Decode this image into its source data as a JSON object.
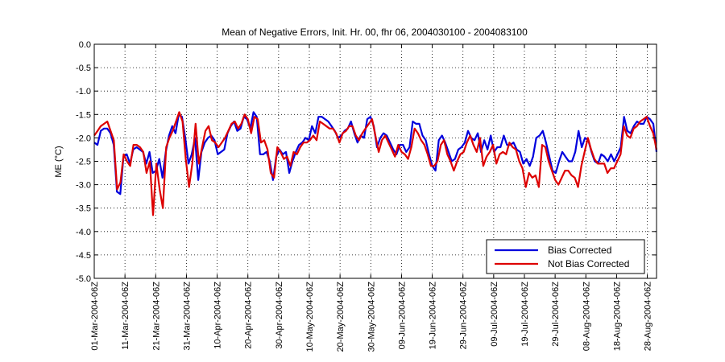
{
  "chart_data": {
    "type": "line",
    "title": "Mean of Negative Errors, Init. Hr. 00, fhr 06, 2004030100 - 2004083100",
    "xlabel": "",
    "ylabel": "ME (°C)",
    "ylim": [
      -5.0,
      0.0
    ],
    "xlim_days": [
      0,
      183
    ],
    "grid": true,
    "legend_position": "bottom-right",
    "y_ticks": [
      "0.0",
      "-0.5",
      "-1.0",
      "-1.5",
      "-2.0",
      "-2.5",
      "-3.0",
      "-3.5",
      "-4.0",
      "-4.5",
      "-5.0"
    ],
    "x_ticks": [
      {
        "day": 0,
        "label": "01-Mar-2004-06Z"
      },
      {
        "day": 10,
        "label": "11-Mar-2004-06Z"
      },
      {
        "day": 20,
        "label": "21-Mar-2004-06Z"
      },
      {
        "day": 30,
        "label": "31-Mar-2004-06Z"
      },
      {
        "day": 40,
        "label": "10-Apr-2004-06Z"
      },
      {
        "day": 50,
        "label": "20-Apr-2004-06Z"
      },
      {
        "day": 60,
        "label": "30-Apr-2004-06Z"
      },
      {
        "day": 70,
        "label": "10-May-2004-06Z"
      },
      {
        "day": 80,
        "label": "20-May-2004-06Z"
      },
      {
        "day": 90,
        "label": "30-May-2004-06Z"
      },
      {
        "day": 100,
        "label": "09-Jun-2004-06Z"
      },
      {
        "day": 110,
        "label": "19-Jun-2004-06Z"
      },
      {
        "day": 120,
        "label": "29-Jun-2004-06Z"
      },
      {
        "day": 130,
        "label": "09-Jul-2004-06Z"
      },
      {
        "day": 140,
        "label": "19-Jul-2004-06Z"
      },
      {
        "day": 150,
        "label": "29-Jul-2004-06Z"
      },
      {
        "day": 160,
        "label": "08-Aug-2004-06Z"
      },
      {
        "day": 170,
        "label": "18-Aug-2004-06Z"
      },
      {
        "day": 180,
        "label": "28-Aug-2004-06Z"
      }
    ],
    "series": [
      {
        "name": "Bias Corrected",
        "color": "#0000dd",
        "values": [
          -2.1,
          -2.15,
          -1.85,
          -1.8,
          -1.8,
          -1.9,
          -2.15,
          -3.15,
          -3.2,
          -2.4,
          -2.35,
          -2.55,
          -2.25,
          -2.2,
          -2.25,
          -2.3,
          -2.55,
          -2.3,
          -2.75,
          -2.7,
          -2.45,
          -2.85,
          -2.3,
          -1.95,
          -1.75,
          -1.9,
          -1.5,
          -1.55,
          -2.0,
          -2.55,
          -2.35,
          -2.0,
          -2.9,
          -2.3,
          -2.1,
          -2.0,
          -1.95,
          -2.05,
          -2.35,
          -2.3,
          -2.25,
          -1.9,
          -1.75,
          -1.65,
          -1.85,
          -1.8,
          -1.55,
          -1.6,
          -1.8,
          -1.45,
          -1.55,
          -2.35,
          -2.35,
          -2.3,
          -2.5,
          -2.9,
          -2.4,
          -2.25,
          -2.35,
          -2.3,
          -2.75,
          -2.5,
          -2.3,
          -2.15,
          -2.1,
          -2.0,
          -2.05,
          -1.75,
          -1.9,
          -1.55,
          -1.55,
          -1.6,
          -1.65,
          -1.75,
          -1.85,
          -2.0,
          -1.95,
          -1.85,
          -1.8,
          -1.65,
          -1.9,
          -2.1,
          -1.95,
          -2.0,
          -1.6,
          -1.55,
          -1.75,
          -2.2,
          -2.0,
          -1.9,
          -1.95,
          -2.1,
          -2.25,
          -2.35,
          -2.15,
          -2.15,
          -2.3,
          -2.2,
          -1.65,
          -1.7,
          -1.7,
          -1.95,
          -2.05,
          -2.35,
          -2.6,
          -2.7,
          -2.05,
          -1.95,
          -2.1,
          -2.3,
          -2.5,
          -2.45,
          -2.25,
          -2.2,
          -2.1,
          -1.85,
          -2.0,
          -2.05,
          -1.9,
          -2.3,
          -2.05,
          -2.25,
          -1.95,
          -2.3,
          -2.2,
          -2.2,
          -1.95,
          -2.15,
          -2.15,
          -2.1,
          -2.25,
          -2.3,
          -2.55,
          -2.45,
          -2.6,
          -2.4,
          -2.0,
          -1.95,
          -1.85,
          -2.1,
          -2.4,
          -2.7,
          -2.75,
          -2.5,
          -2.3,
          -2.4,
          -2.5,
          -2.5,
          -2.3,
          -1.85,
          -2.2,
          -2.0,
          -2.05,
          -2.3,
          -2.5,
          -2.55,
          -2.35,
          -2.4,
          -2.5,
          -2.35,
          -2.5,
          -2.35,
          -2.2,
          -1.55,
          -1.85,
          -1.9,
          -1.75,
          -1.65,
          -1.7,
          -1.7,
          -1.55,
          -1.6,
          -1.7,
          -2.3
        ]
      },
      {
        "name": "Not Bias Corrected",
        "color": "#dd0000",
        "values": [
          -1.95,
          -1.85,
          -1.75,
          -1.7,
          -1.65,
          -1.85,
          -2.05,
          -3.1,
          -2.95,
          -2.35,
          -2.5,
          -2.6,
          -2.15,
          -2.15,
          -2.2,
          -2.3,
          -2.75,
          -2.5,
          -3.65,
          -2.55,
          -3.1,
          -3.5,
          -2.2,
          -2.0,
          -1.85,
          -1.65,
          -1.45,
          -1.65,
          -2.45,
          -3.05,
          -2.55,
          -1.7,
          -2.55,
          -2.2,
          -1.85,
          -1.75,
          -2.05,
          -2.1,
          -2.2,
          -2.1,
          -2.0,
          -1.85,
          -1.7,
          -1.65,
          -1.8,
          -1.7,
          -1.5,
          -1.6,
          -1.9,
          -1.55,
          -1.6,
          -2.1,
          -2.05,
          -2.25,
          -2.75,
          -2.85,
          -2.2,
          -2.3,
          -2.45,
          -2.4,
          -2.6,
          -2.3,
          -2.35,
          -2.2,
          -2.1,
          -2.1,
          -2.05,
          -1.95,
          -2.05,
          -1.65,
          -1.7,
          -1.75,
          -1.8,
          -1.8,
          -1.9,
          -2.1,
          -1.9,
          -1.85,
          -1.75,
          -1.75,
          -1.95,
          -2.05,
          -1.9,
          -1.8,
          -1.7,
          -1.6,
          -1.95,
          -2.3,
          -2.05,
          -1.95,
          -2.1,
          -2.25,
          -2.4,
          -2.15,
          -2.3,
          -2.35,
          -2.45,
          -2.2,
          -1.8,
          -1.9,
          -2.05,
          -2.15,
          -2.35,
          -2.6,
          -2.6,
          -2.5,
          -2.15,
          -2.05,
          -2.35,
          -2.5,
          -2.7,
          -2.5,
          -2.35,
          -2.3,
          -2.1,
          -1.95,
          -2.15,
          -2.3,
          -2.0,
          -2.6,
          -2.4,
          -2.3,
          -2.15,
          -2.55,
          -2.35,
          -2.3,
          -2.35,
          -2.1,
          -2.2,
          -2.25,
          -2.5,
          -2.65,
          -3.05,
          -2.75,
          -2.85,
          -2.8,
          -3.05,
          -2.15,
          -2.2,
          -2.5,
          -2.7,
          -2.9,
          -3.0,
          -2.85,
          -2.7,
          -2.7,
          -2.8,
          -2.85,
          -3.05,
          -2.6,
          -2.3,
          -2.0,
          -2.25,
          -2.45,
          -2.55,
          -2.55,
          -2.55,
          -2.75,
          -2.65,
          -2.65,
          -2.5,
          -2.35,
          -1.75,
          -1.95,
          -2.0,
          -1.8,
          -1.75,
          -1.65,
          -1.6,
          -1.55,
          -1.75,
          -1.9,
          -2.25
        ]
      }
    ]
  }
}
